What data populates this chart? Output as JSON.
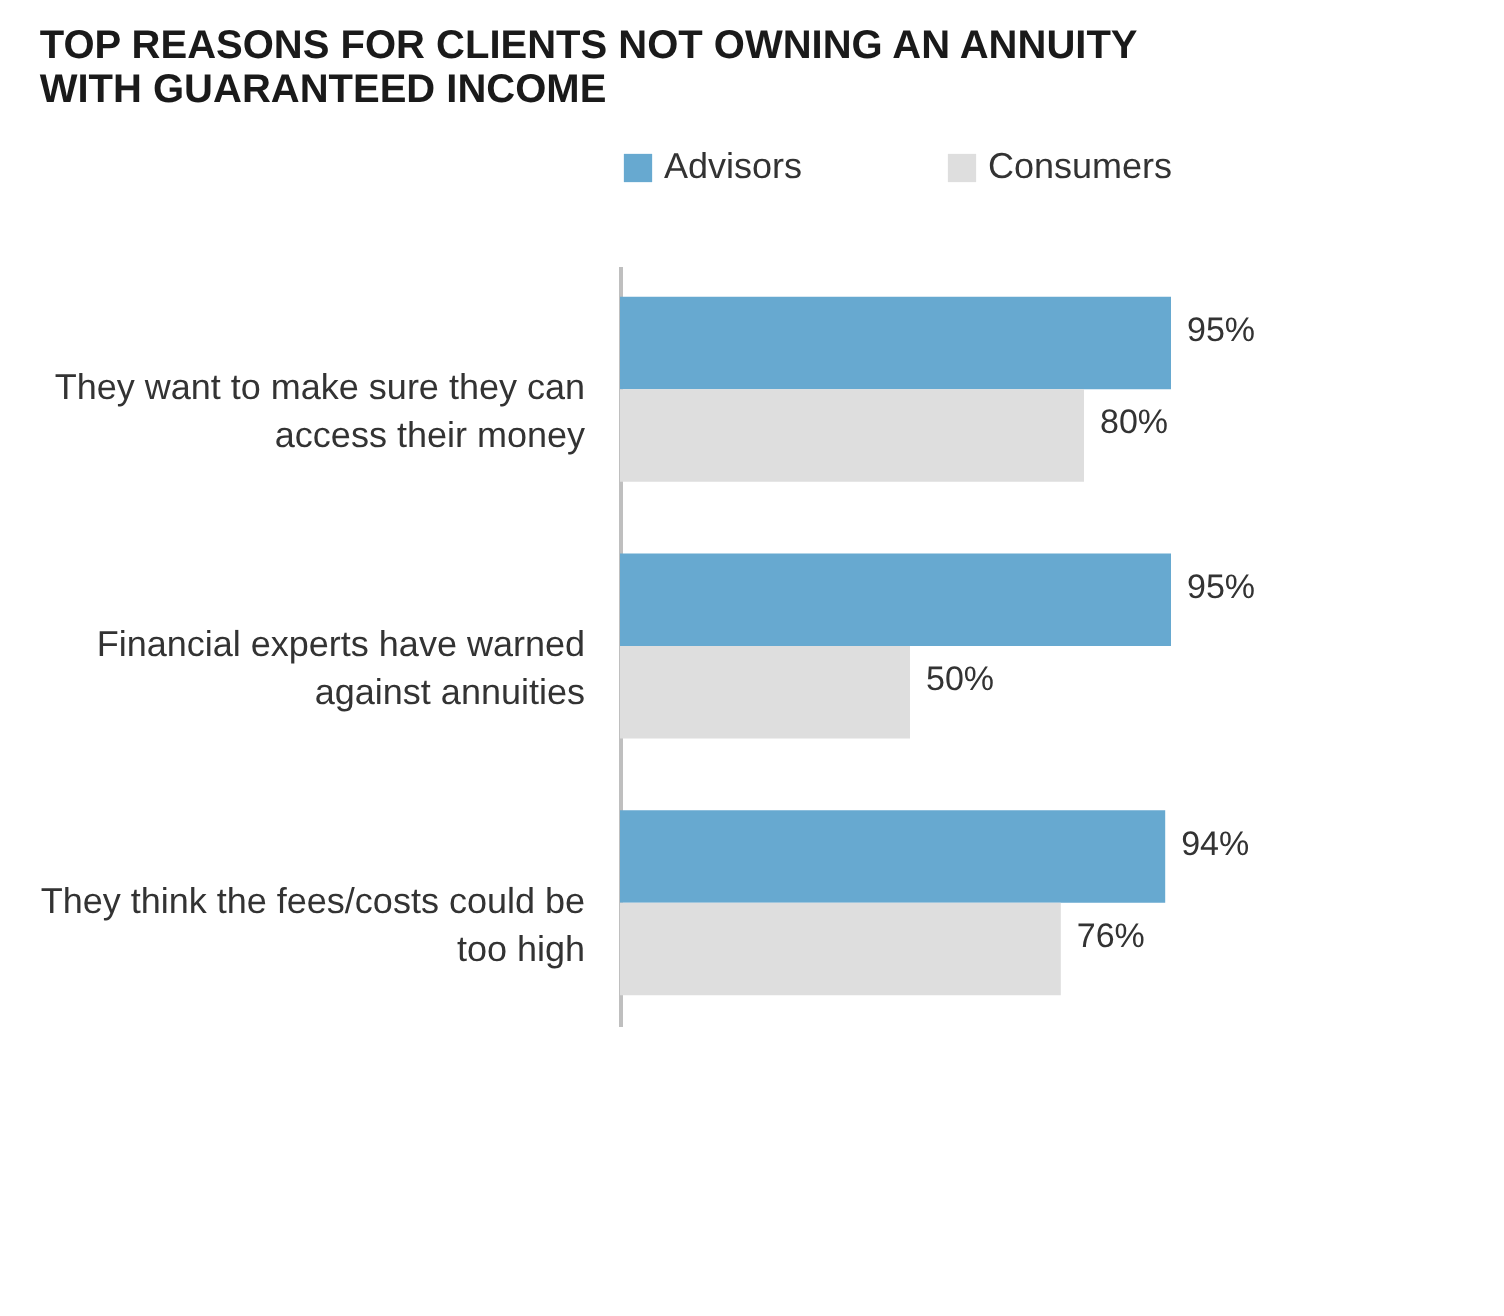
{
  "chart_data": {
    "type": "bar",
    "orientation": "horizontal",
    "title": "TOP REASONS FOR CLIENTS NOT OWNING AN ANNUITY WITH GUARANTEED INCOME",
    "categories": [
      "They want to make sure they can access their money",
      "Financial experts have warned against annuities",
      "They think the fees/costs could be too high"
    ],
    "series": [
      {
        "name": "Advisors",
        "color": "#67a9d0",
        "values": [
          95,
          95,
          94
        ],
        "value_labels": [
          "95%",
          "95%",
          "94%"
        ]
      },
      {
        "name": "Consumers",
        "color": "#dedede",
        "values": [
          80,
          50,
          76
        ],
        "value_labels": [
          "80%",
          "50%",
          "76%"
        ]
      }
    ],
    "legend": "top"
  }
}
